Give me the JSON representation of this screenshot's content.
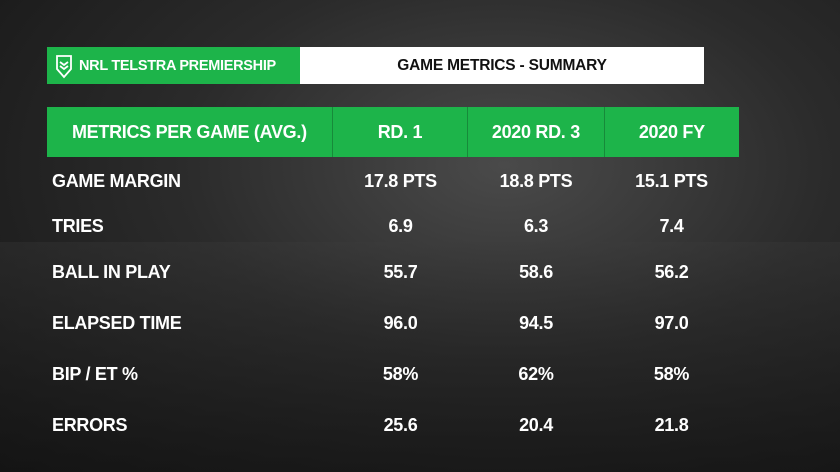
{
  "banner": {
    "brand": "NRL TELSTRA PREMIERSHIP",
    "brand_color": "#1db44a",
    "logo_icon": "nrl-shield-logo",
    "title": "GAME METRICS - SUMMARY"
  },
  "table": {
    "headers": [
      "METRICS PER GAME (AVG.)",
      "RD. 1",
      "2020 RD. 3",
      "2020 FY"
    ],
    "rows": [
      [
        "GAME MARGIN",
        "17.8 PTS",
        "18.8 PTS",
        "15.1 PTS"
      ],
      [
        "TRIES",
        "6.9",
        "6.3",
        "7.4"
      ],
      [
        "BALL IN PLAY",
        "55.7",
        "58.6",
        "56.2"
      ],
      [
        "ELAPSED TIME",
        "96.0",
        "94.5",
        "97.0"
      ],
      [
        "BIP / ET %",
        "58%",
        "62%",
        "58%"
      ],
      [
        "ERRORS",
        "25.6",
        "20.4",
        "21.8"
      ]
    ]
  }
}
